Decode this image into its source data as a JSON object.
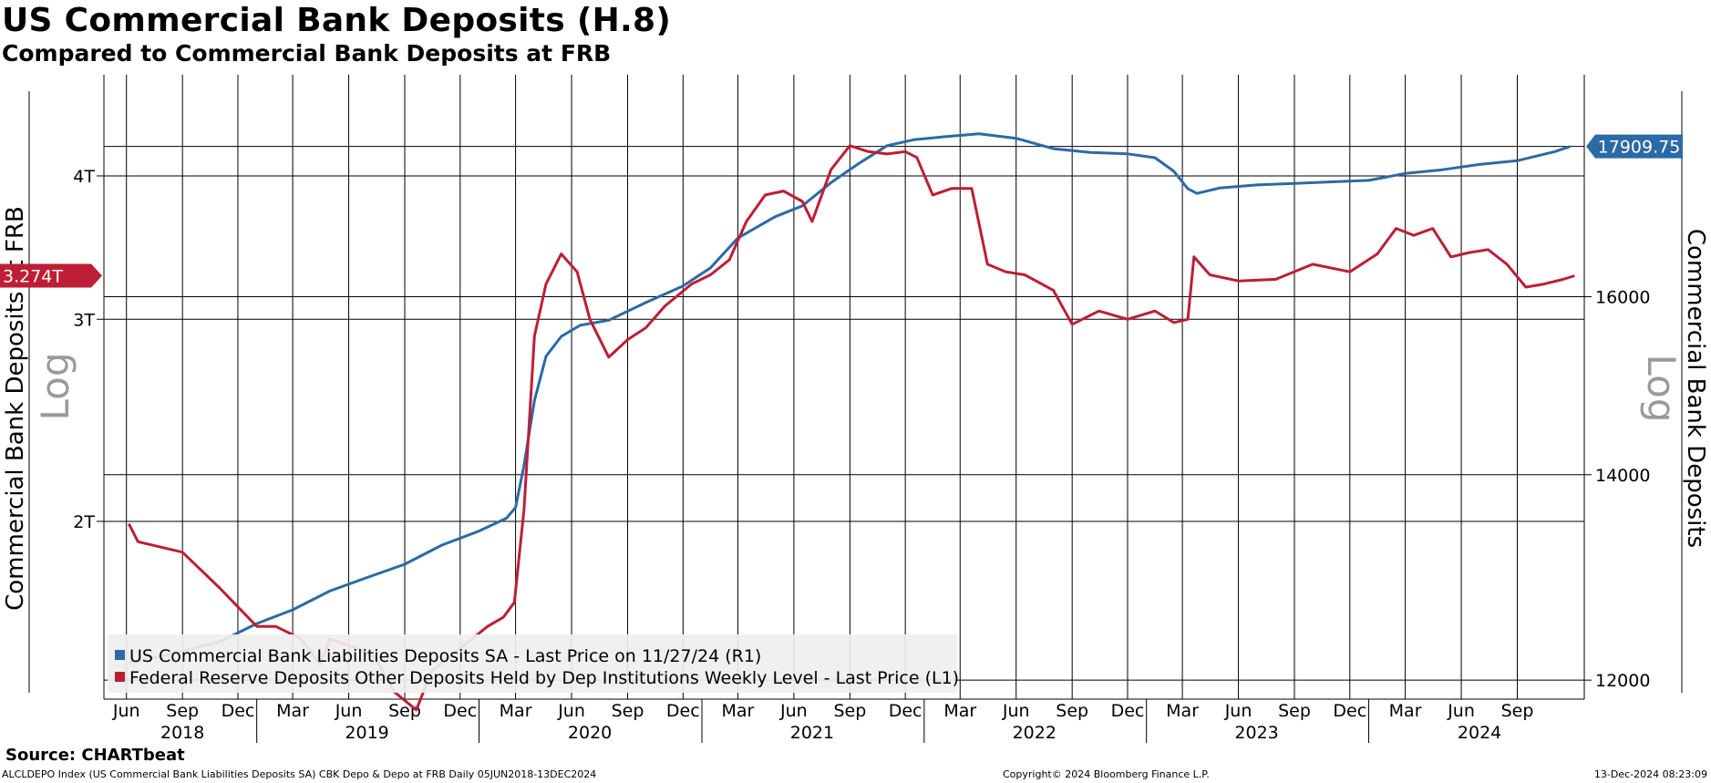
{
  "chart_data": {
    "type": "line",
    "title": "US Commercial Bank Deposits (H.8)",
    "subtitle": "Compared to Commercial Bank Deposits at FRB",
    "left_axis": {
      "label": "Commercial Bank Deposits at FRB",
      "scale": "Log",
      "ticks": [
        {
          "value": 2000000000000,
          "label": "2T"
        },
        {
          "value": 3000000000000,
          "label": "3T"
        },
        {
          "value": 4000000000000,
          "label": "4T"
        }
      ],
      "range": [
        1400000000000,
        4900000000000
      ]
    },
    "right_axis": {
      "label": "Commercial Bank Deposits",
      "scale": "Log",
      "ticks": [
        12000,
        14000,
        16000
      ],
      "range": [
        11830,
        18900
      ]
    },
    "x_axis": {
      "range": [
        "2018-04-25",
        "2024-12-20"
      ],
      "month_ticks": [
        {
          "date": "2018-06-01",
          "label": "Jun"
        },
        {
          "date": "2018-09-01",
          "label": "Sep"
        },
        {
          "date": "2018-12-01",
          "label": "Dec"
        },
        {
          "date": "2019-03-01",
          "label": "Mar"
        },
        {
          "date": "2019-06-01",
          "label": "Jun"
        },
        {
          "date": "2019-09-01",
          "label": "Sep"
        },
        {
          "date": "2019-12-01",
          "label": "Dec"
        },
        {
          "date": "2020-03-01",
          "label": "Mar"
        },
        {
          "date": "2020-06-01",
          "label": "Jun"
        },
        {
          "date": "2020-09-01",
          "label": "Sep"
        },
        {
          "date": "2020-12-01",
          "label": "Dec"
        },
        {
          "date": "2021-03-01",
          "label": "Mar"
        },
        {
          "date": "2021-06-01",
          "label": "Jun"
        },
        {
          "date": "2021-09-01",
          "label": "Sep"
        },
        {
          "date": "2021-12-01",
          "label": "Dec"
        },
        {
          "date": "2022-03-01",
          "label": "Mar"
        },
        {
          "date": "2022-06-01",
          "label": "Jun"
        },
        {
          "date": "2022-09-01",
          "label": "Sep"
        },
        {
          "date": "2022-12-01",
          "label": "Dec"
        },
        {
          "date": "2023-03-01",
          "label": "Mar"
        },
        {
          "date": "2023-06-01",
          "label": "Jun"
        },
        {
          "date": "2023-09-01",
          "label": "Sep"
        },
        {
          "date": "2023-12-01",
          "label": "Dec"
        },
        {
          "date": "2024-03-01",
          "label": "Mar"
        },
        {
          "date": "2024-06-01",
          "label": "Jun"
        },
        {
          "date": "2024-09-01",
          "label": "Sep"
        }
      ],
      "year_labels": [
        {
          "date": "2018-09-01",
          "label": "2018"
        },
        {
          "date": "2019-07-01",
          "label": "2019"
        },
        {
          "date": "2020-07-01",
          "label": "2020"
        },
        {
          "date": "2021-07-01",
          "label": "2021"
        },
        {
          "date": "2022-07-01",
          "label": "2022"
        },
        {
          "date": "2023-07-01",
          "label": "2023"
        },
        {
          "date": "2024-07-01",
          "label": "2024"
        }
      ],
      "year_boundaries": [
        "2019-01-01",
        "2020-01-01",
        "2021-01-01",
        "2022-01-01",
        "2023-01-01",
        "2024-01-01"
      ]
    },
    "series": [
      {
        "name": "US Commercial Bank Liabilities Deposits SA - Last Price on 11/27/24 (R1)",
        "axis": "right",
        "color": "#2c6aa5",
        "last_value_label": "17909.75",
        "x": [
          "2018-06-05",
          "2018-08-01",
          "2018-11-01",
          "2019-01-01",
          "2019-03-01",
          "2019-05-01",
          "2019-07-01",
          "2019-09-01",
          "2019-11-01",
          "2020-01-01",
          "2020-02-15",
          "2020-03-01",
          "2020-03-15",
          "2020-04-01",
          "2020-04-20",
          "2020-05-15",
          "2020-06-15",
          "2020-08-01",
          "2020-10-01",
          "2020-12-01",
          "2021-01-15",
          "2021-03-01",
          "2021-05-01",
          "2021-06-15",
          "2021-08-01",
          "2021-09-15",
          "2021-11-01",
          "2021-12-15",
          "2022-02-01",
          "2022-04-01",
          "2022-06-01",
          "2022-08-01",
          "2022-10-01",
          "2022-12-01",
          "2023-01-15",
          "2023-02-15",
          "2023-03-10",
          "2023-03-25",
          "2023-05-01",
          "2023-07-01",
          "2023-09-01",
          "2023-11-01",
          "2024-01-01",
          "2024-03-01",
          "2024-05-01",
          "2024-07-01",
          "2024-09-01",
          "2024-11-01",
          "2024-11-27"
        ],
        "y": [
          12160,
          12220,
          12350,
          12520,
          12650,
          12830,
          12960,
          13090,
          13280,
          13420,
          13550,
          13660,
          14100,
          14800,
          15300,
          15530,
          15660,
          15720,
          15930,
          16130,
          16350,
          16720,
          16990,
          17130,
          17430,
          17680,
          17920,
          18000,
          18040,
          18080,
          18020,
          17880,
          17830,
          17810,
          17760,
          17580,
          17350,
          17290,
          17360,
          17400,
          17420,
          17440,
          17460,
          17550,
          17600,
          17670,
          17720,
          17840,
          17909.75
        ]
      },
      {
        "name": "Federal Reserve Deposits Other Deposits Held by Dep Institutions Weekly Level - Last Price (L1)",
        "axis": "left",
        "color": "#be1e35",
        "last_value_label": "3.274T",
        "x": [
          "2018-06-05",
          "2018-06-20",
          "2018-09-01",
          "2018-11-01",
          "2019-01-01",
          "2019-02-01",
          "2019-03-15",
          "2019-04-15",
          "2019-05-01",
          "2019-06-15",
          "2019-07-15",
          "2019-08-15",
          "2019-09-20",
          "2019-10-15",
          "2019-12-01",
          "2020-01-15",
          "2020-02-10",
          "2020-02-28",
          "2020-03-15",
          "2020-04-01",
          "2020-04-20",
          "2020-05-15",
          "2020-06-10",
          "2020-07-01",
          "2020-08-01",
          "2020-09-01",
          "2020-10-01",
          "2020-11-01",
          "2020-12-15",
          "2021-01-15",
          "2021-02-15",
          "2021-03-15",
          "2021-04-15",
          "2021-05-15",
          "2021-06-15",
          "2021-07-01",
          "2021-08-01",
          "2021-09-01",
          "2021-10-01",
          "2021-11-01",
          "2021-12-01",
          "2021-12-20",
          "2022-01-15",
          "2022-02-15",
          "2022-03-20",
          "2022-04-15",
          "2022-05-15",
          "2022-06-15",
          "2022-08-01",
          "2022-09-01",
          "2022-10-15",
          "2022-12-01",
          "2023-01-15",
          "2023-02-15",
          "2023-03-10",
          "2023-03-20",
          "2023-04-15",
          "2023-06-01",
          "2023-08-01",
          "2023-10-01",
          "2023-12-01",
          "2024-01-15",
          "2024-02-15",
          "2024-03-15",
          "2024-04-15",
          "2024-05-15",
          "2024-06-15",
          "2024-07-15",
          "2024-08-15",
          "2024-09-15",
          "2024-10-15",
          "2024-11-15",
          "2024-12-04"
        ],
        "y": [
          1.99,
          1.92,
          1.88,
          1.75,
          1.62,
          1.62,
          1.58,
          1.5,
          1.58,
          1.55,
          1.52,
          1.42,
          1.37,
          1.48,
          1.55,
          1.62,
          1.65,
          1.7,
          2.05,
          2.9,
          3.22,
          3.42,
          3.3,
          3.0,
          2.78,
          2.88,
          2.95,
          3.08,
          3.22,
          3.28,
          3.38,
          3.65,
          3.85,
          3.88,
          3.8,
          3.65,
          4.05,
          4.25,
          4.2,
          4.18,
          4.2,
          4.15,
          3.85,
          3.9,
          3.9,
          3.35,
          3.3,
          3.28,
          3.18,
          2.97,
          3.05,
          3.0,
          3.05,
          2.98,
          3.0,
          3.4,
          3.28,
          3.24,
          3.25,
          3.35,
          3.3,
          3.42,
          3.6,
          3.55,
          3.6,
          3.4,
          3.43,
          3.45,
          3.35,
          3.2,
          3.22,
          3.25,
          3.274
        ]
      }
    ],
    "legend_placement": "bottom-left",
    "grid": true
  },
  "footer": {
    "source": "Source: CHARTbeat",
    "left": "ALCLDEPO Index (US Commercial Bank Liabilities Deposits SA) CBK Depo & Depo at FRB  Daily 05JUN2018-13DEC2024",
    "middle": "Copyright© 2024 Bloomberg Finance L.P.",
    "right": "13-Dec-2024 08:23:09"
  },
  "colors": {
    "blue": "#2c6aa5",
    "red": "#be1e35"
  }
}
